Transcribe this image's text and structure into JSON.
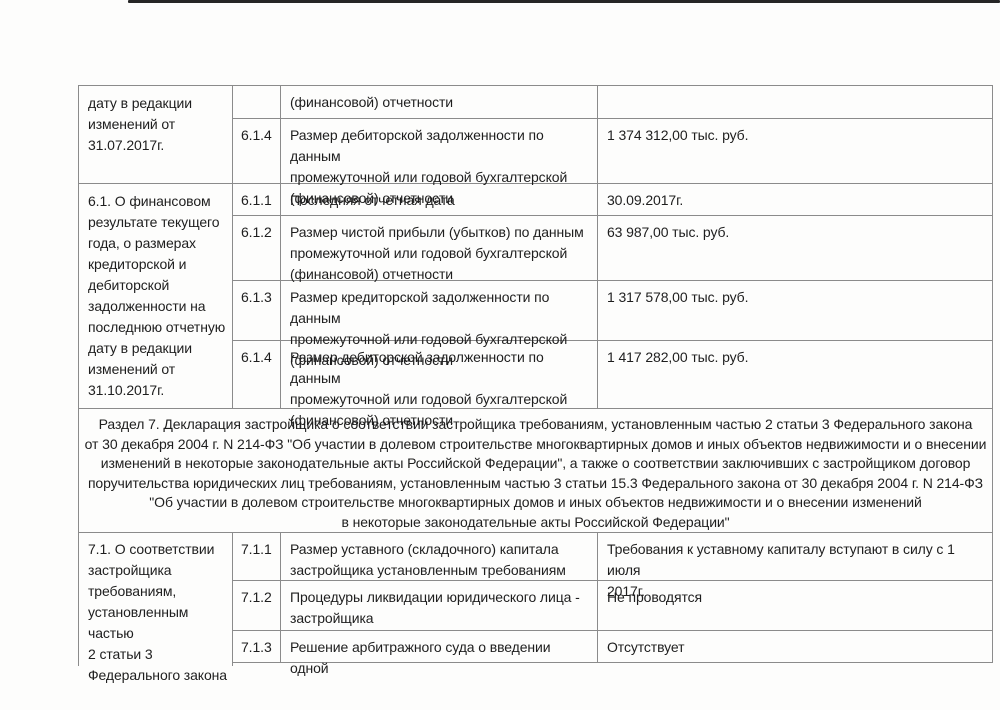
{
  "document": {
    "colors": {
      "border": "#8b8b8b",
      "text": "#1e1e1e",
      "paper": "#fdfdfc",
      "scan_edge": "#262626"
    },
    "table": {
      "sections": [
        {
          "left_label": "дату в редакции\nизменений от\n31.07.2017г.",
          "rows": [
            {
              "num": "",
              "param": "(финансовой) отчетности",
              "value": ""
            },
            {
              "num": "6.1.4",
              "param": "Размер дебиторской задолженности по данным\nпромежуточной или годовой бухгалтерской\n(финансовой) отчетности",
              "value": "1 374 312,00 тыс. руб."
            }
          ]
        },
        {
          "left_label": "6.1. О финансовом\nрезультате текущего\nгода, о размерах\nкредиторской и\nдебиторской\nзадолженности на\nпоследнюю отчетную\nдату в редакции\nизменений от\n31.10.2017г.",
          "rows": [
            {
              "num": "6.1.1",
              "param": "Последняя отчетная дата",
              "value": "30.09.2017г."
            },
            {
              "num": "6.1.2",
              "param": "Размер чистой прибыли (убытков) по данным\nпромежуточной или годовой бухгалтерской\n(финансовой) отчетности",
              "value": "63 987,00 тыс. руб."
            },
            {
              "num": "6.1.3",
              "param": "Размер кредиторской задолженности по данным\nпромежуточной или годовой бухгалтерской\n(финансовой) отчетности",
              "value": "1 317 578,00 тыс. руб."
            },
            {
              "num": "6.1.4",
              "param": "Размер дебиторской задолженности по данным\nпромежуточной или годовой бухгалтерской\n(финансовой) отчетности",
              "value": "1 417 282,00 тыс. руб."
            }
          ]
        },
        {
          "left_label": "7.1. О соответствии\nзастройщика\nтребованиям,\nустановленным частью\n2 статьи 3\nФедерального закона",
          "rows": [
            {
              "num": "7.1.1",
              "param": "Размер уставного (складочного) капитала\nзастройщика установленным требованиям",
              "value": "Требования к уставному капиталу вступают в силу с 1 июля\n2017г."
            },
            {
              "num": "7.1.2",
              "param": "Процедуры ликвидации юридического лица -\nзастройщика",
              "value": "Не проводятся"
            },
            {
              "num": "7.1.3",
              "param": "Решение арбитражного суда о введении одной",
              "value": "Отсутствует"
            }
          ]
        }
      ],
      "section7_header_lines": [
        "Раздел 7. Декларация застройщика о соответствии застройщика требованиям, установленным частью 2 статьи 3 Федерального закона",
        "от 30 декабря 2004 г. N 214-ФЗ \"Об участии в долевом строительстве многоквартирных домов и иных объектов недвижимости и о внесении",
        "изменений в некоторые законодательные акты Российской Федерации\", а также о соответствии заключивших с застройщиком договор",
        "поручительства юридических лиц требованиям, установленным частью 3 статьи 15.3 Федерального закона от 30 декабря 2004 г. N 214-ФЗ",
        "\"Об участии в долевом строительстве многоквартирных домов и иных объектов недвижимости и о внесении изменений",
        "в некоторые законодательные акты Российской Федерации\""
      ]
    }
  }
}
